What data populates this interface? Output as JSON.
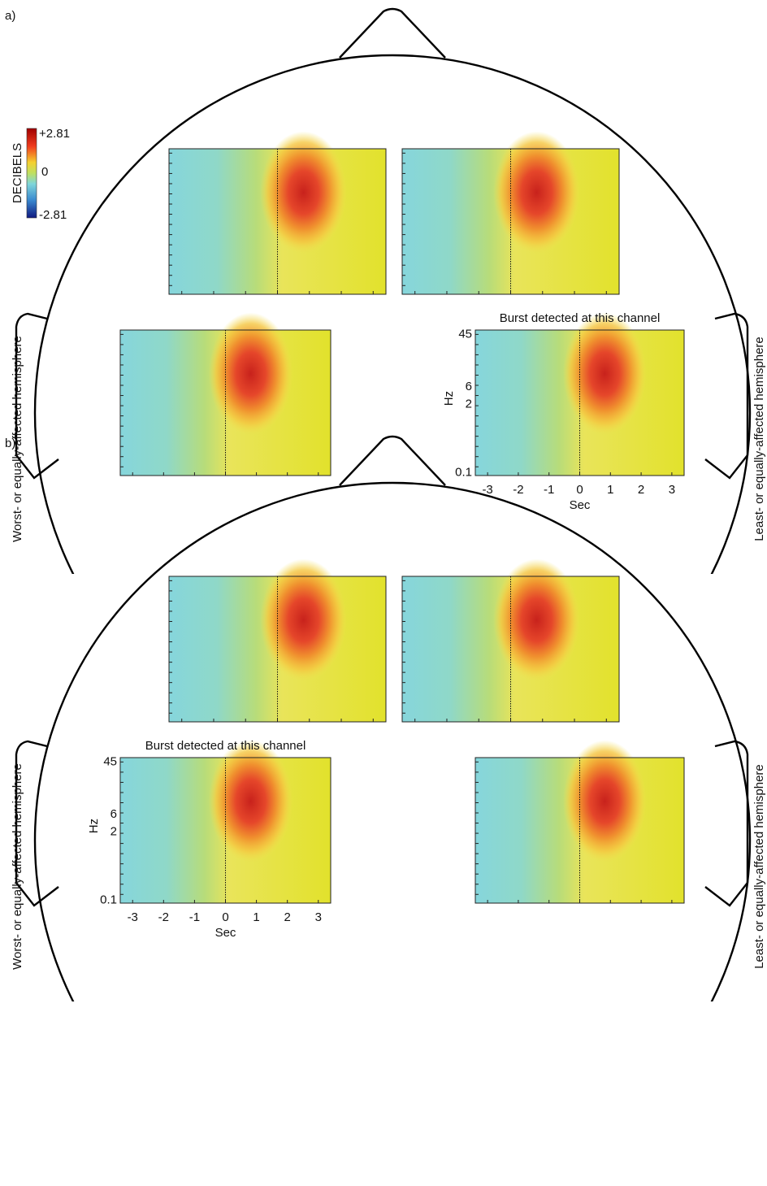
{
  "panels": [
    {
      "label": "a)",
      "colorbar": {
        "title": "DECIBELS",
        "max": "+2.81",
        "mid": "0",
        "min": "-2.81"
      },
      "left_label": "Worst- or equally-affected hemisphere",
      "right_label": "Least- or equally-affected hemisphere",
      "burst_title": "Burst detected at this channel",
      "y_axis_label": "Hz",
      "yticks": [
        "45",
        "6",
        "2",
        "0.1"
      ],
      "x_axis_label": "Sec",
      "xticks": [
        "-3",
        "-2",
        "-1",
        "0",
        "1",
        "2",
        "3"
      ]
    },
    {
      "label": "b)",
      "left_label": "Worst- or equally-affected hemisphere",
      "right_label": "Least- or equally-affected hemisphere",
      "burst_title": "Burst detected at this channel",
      "y_axis_label": "Hz",
      "yticks": [
        "45",
        "6",
        "2",
        "0.1"
      ],
      "x_axis_label": "Sec",
      "xticks": [
        "-3",
        "-2",
        "-1",
        "0",
        "1",
        "2",
        "3"
      ]
    }
  ]
}
